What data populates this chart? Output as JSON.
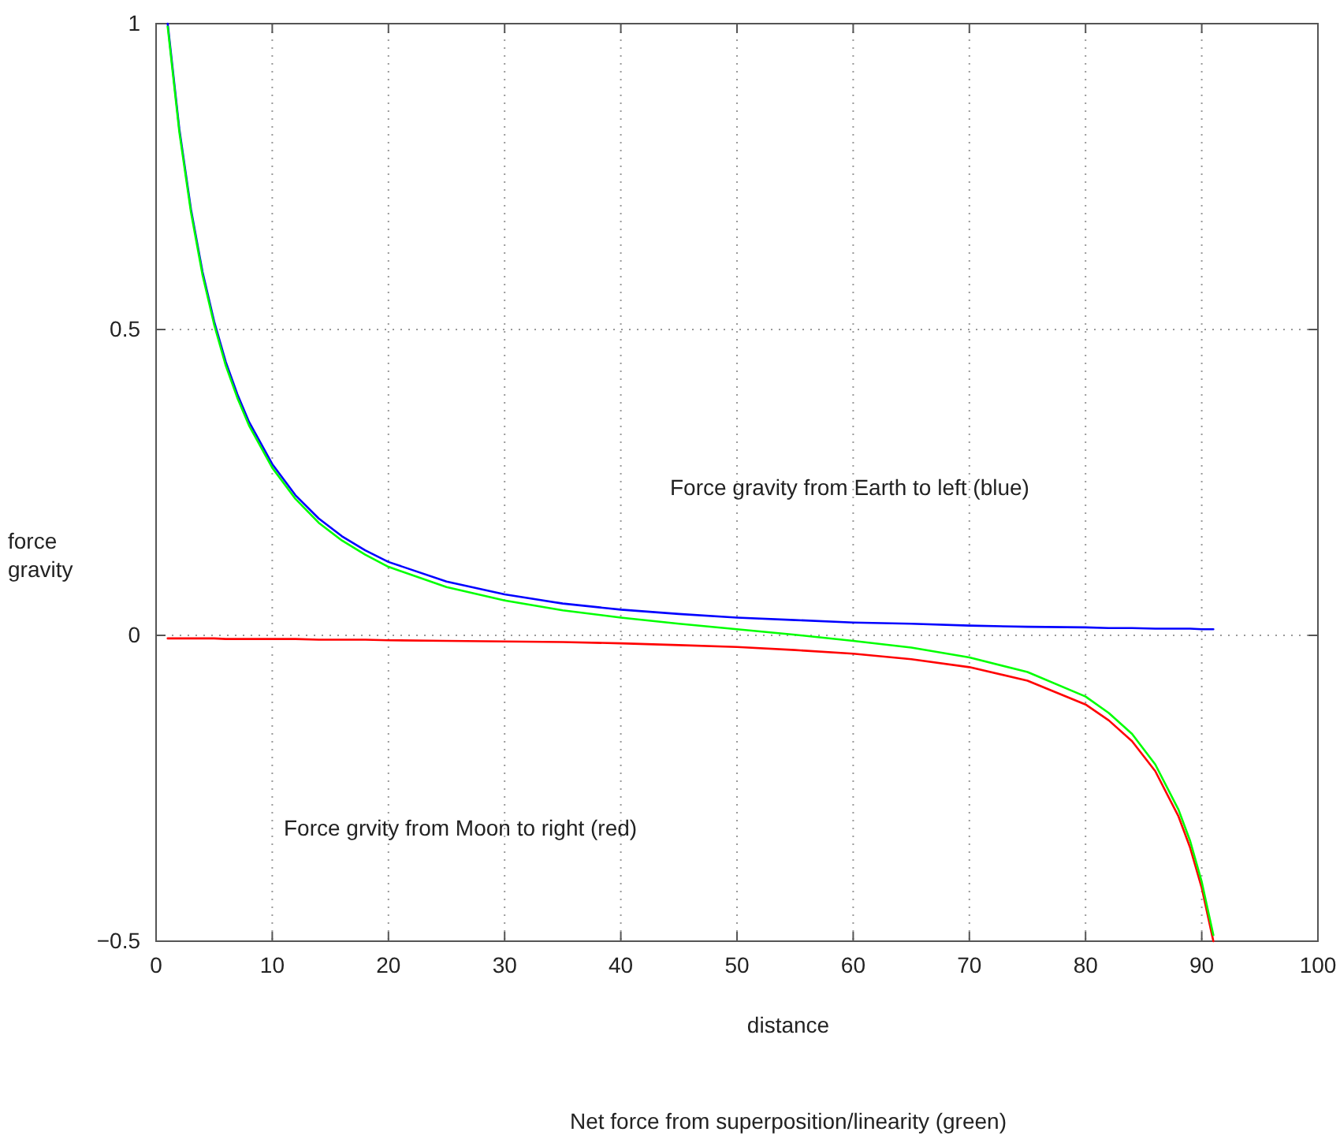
{
  "chart_data": {
    "type": "line",
    "xlabel": "distance",
    "ylabel": "force\ngravity",
    "annotations": [
      "Force gravity from Earth to left (blue)",
      "Force grvity from Moon to right (red)",
      "Net force from superposition/linearity (green)"
    ],
    "x": [
      1,
      2,
      3,
      4,
      5,
      6,
      7,
      8,
      10,
      12,
      14,
      16,
      18,
      20,
      25,
      30,
      35,
      40,
      45,
      50,
      55,
      60,
      65,
      70,
      75,
      80,
      82,
      84,
      86,
      88,
      89,
      90,
      91
    ],
    "series": [
      {
        "color": "#0000ff",
        "values": [
          1.0,
          0.828,
          0.697,
          0.594,
          0.513,
          0.447,
          0.394,
          0.349,
          0.28,
          0.229,
          0.191,
          0.162,
          0.139,
          0.12,
          0.088,
          0.067,
          0.052,
          0.042,
          0.035,
          0.029,
          0.025,
          0.021,
          0.019,
          0.016,
          0.014,
          0.013,
          0.012,
          0.012,
          0.011,
          0.011,
          0.011,
          0.01,
          0.01
        ]
      },
      {
        "color": "#ff0000",
        "values": [
          -0.005,
          -0.005,
          -0.005,
          -0.005,
          -0.005,
          -0.006,
          -0.006,
          -0.006,
          -0.006,
          -0.006,
          -0.007,
          -0.007,
          -0.007,
          -0.008,
          -0.009,
          -0.01,
          -0.011,
          -0.013,
          -0.016,
          -0.019,
          -0.024,
          -0.03,
          -0.039,
          -0.052,
          -0.074,
          -0.113,
          -0.139,
          -0.173,
          -0.222,
          -0.296,
          -0.347,
          -0.413,
          -0.5
        ]
      },
      {
        "color": "#00ff00",
        "values": [
          0.995,
          0.823,
          0.692,
          0.589,
          0.508,
          0.441,
          0.388,
          0.343,
          0.274,
          0.223,
          0.184,
          0.155,
          0.132,
          0.112,
          0.079,
          0.057,
          0.041,
          0.029,
          0.019,
          0.01,
          0.001,
          -0.009,
          -0.02,
          -0.036,
          -0.06,
          -0.1,
          -0.127,
          -0.161,
          -0.211,
          -0.285,
          -0.336,
          -0.403,
          -0.49
        ]
      }
    ],
    "xlim": [
      0,
      100
    ],
    "xticks": [
      0,
      10,
      20,
      30,
      40,
      50,
      60,
      70,
      80,
      90,
      100
    ],
    "ylim": [
      -0.5,
      1
    ],
    "yticks": [
      {
        "value": -0.5,
        "label": "−0.5"
      },
      0,
      0.5,
      1
    ],
    "grid": true,
    "line_style": "solid",
    "marker": "none"
  }
}
